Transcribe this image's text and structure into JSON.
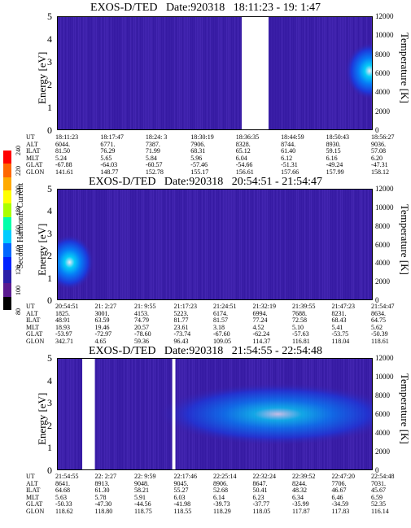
{
  "colorbar": {
    "label": "Second Harmonic Current",
    "ticks": [
      "80",
      "100",
      "120",
      "140",
      "160",
      "180",
      "200",
      "220",
      "240"
    ],
    "colors": [
      "#ff0000",
      "#ff6600",
      "#ffaa00",
      "#ffff00",
      "#aaff00",
      "#00ffaa",
      "#00ccff",
      "#0066ff",
      "#0022ff",
      "#2a1fa8",
      "#5a1a90",
      "#000000"
    ]
  },
  "chart_data": [
    {
      "type": "heatmap",
      "title": "EXOS-D/TED   Date:920318   18:11:23 - 19: 1:47",
      "ylabel": "Energy [eV]",
      "y2label": "Temperature [K]",
      "ylim": [
        0,
        5
      ],
      "y2lim": [
        0,
        12000
      ],
      "yticks": [
        "0",
        "1",
        "2",
        "3",
        "4",
        "5"
      ],
      "y2ticks": [
        "0",
        "2000",
        "4000",
        "6000",
        "8000",
        "10000",
        "12000"
      ],
      "gaps": [
        [
          0.585,
          0.67
        ]
      ],
      "hotspots": [
        {
          "cx": 0.99,
          "cy": 2.6,
          "level": 0.55
        }
      ],
      "rows": {
        "UT": [
          "18:11:23",
          "18:17:47",
          "18:24: 3",
          "18:30:19",
          "18:36:35",
          "18:44:59",
          "18:50:43",
          "18:56:27"
        ],
        "ALT": [
          "6044.",
          "6771.",
          "7387.",
          "7906.",
          "8328.",
          "8744.",
          "8930.",
          "9036."
        ],
        "ILAT": [
          "81.50",
          "76.29",
          "71.99",
          "68.31",
          "65.12",
          "61.40",
          "59.15",
          "57.08"
        ],
        "MLT": [
          "5.24",
          "5.65",
          "5.84",
          "5.96",
          "6.04",
          "6.12",
          "6.16",
          "6.20"
        ],
        "GLAT": [
          "-67.88",
          "-64.03",
          "-60.57",
          "-57.46",
          "-54.66",
          "-51.31",
          "-49.24",
          "-47.31"
        ],
        "GLON": [
          "141.61",
          "148.77",
          "152.78",
          "155.17",
          "156.61",
          "157.66",
          "157.99",
          "158.12"
        ]
      }
    },
    {
      "type": "heatmap",
      "title": "EXOS-D/TED   Date:920318   20:54:51 - 21:54:47",
      "ylabel": "Energy [eV]",
      "y2label": "Temperature [K]",
      "ylim": [
        0,
        5
      ],
      "y2lim": [
        0,
        12000
      ],
      "yticks": [
        "0",
        "1",
        "2",
        "3",
        "4",
        "5"
      ],
      "y2ticks": [
        "0",
        "2000",
        "4000",
        "6000",
        "8000",
        "10000",
        "12000"
      ],
      "gaps": [],
      "hotspots": [
        {
          "cx": 0.04,
          "cy": 1.7,
          "level": 0.6
        }
      ],
      "rows": {
        "UT": [
          "20:54:51",
          "21: 2:27",
          "21: 9:55",
          "21:17:23",
          "21:24:51",
          "21:32:19",
          "21:39:55",
          "21:47:23",
          "21:54:47"
        ],
        "ALT": [
          "1825.",
          "3001.",
          "4153.",
          "5223.",
          "6174.",
          "6994.",
          "7688.",
          "8231.",
          "8634."
        ],
        "ILAT": [
          "48.91",
          "63.59",
          "74.79",
          "81.77",
          "81.57",
          "77.24",
          "72.58",
          "68.43",
          "64.75"
        ],
        "MLT": [
          "18.93",
          "19.46",
          "20.57",
          "23.61",
          "3.18",
          "4.52",
          "5.10",
          "5.41",
          "5.62"
        ],
        "GLAT": [
          "-53.97",
          "-72.97",
          "-78.60",
          "-73.74",
          "-67.60",
          "-62.24",
          "-57.63",
          "-53.75",
          "-50.39"
        ],
        "GLON": [
          "342.71",
          "4.65",
          "59.36",
          "96.43",
          "109.05",
          "114.37",
          "116.81",
          "118.04",
          "118.61"
        ]
      }
    },
    {
      "type": "heatmap",
      "title": "EXOS-D/TED   Date:920318   21:54:55 - 22:54:48",
      "ylabel": "Energy [eV]",
      "y2label": "Temperature [K]",
      "ylim": [
        0,
        5
      ],
      "y2lim": [
        0,
        12000
      ],
      "yticks": [
        "0",
        "1",
        "2",
        "3",
        "4",
        "5"
      ],
      "y2ticks": [
        "0",
        "2000",
        "4000",
        "6000",
        "8000",
        "10000",
        "12000"
      ],
      "gaps": [
        [
          0.08,
          0.12
        ],
        [
          0.365,
          0.375
        ]
      ],
      "hotspots": [
        {
          "cx": 0.7,
          "cy": 2.5,
          "level": 0.4,
          "wide": true
        }
      ],
      "rows": {
        "UT": [
          "21:54:55",
          "22: 2:27",
          "22: 9:59",
          "22:17:46",
          "22:25:14",
          "22:32:24",
          "22:39:52",
          "22:47:20",
          "22:54:48"
        ],
        "ALT": [
          "8641.",
          "8913.",
          "9048.",
          "9045.",
          "8906.",
          "8647.",
          "8244.",
          "7706.",
          "7031."
        ],
        "ILAT": [
          "64.68",
          "61.30",
          "58.21",
          "55.27",
          "52.68",
          "50.41",
          "48.32",
          "46.67",
          "45.67"
        ],
        "MLT": [
          "5.63",
          "5.78",
          "5.91",
          "6.03",
          "6.14",
          "6.23",
          "6.34",
          "6.46",
          "6.59"
        ],
        "GLAT": [
          "-50.33",
          "-47.30",
          "-44.56",
          "-41.98",
          "-39.73",
          "-37.77",
          "-35.99",
          "-34.59",
          "52.35"
        ],
        "GLON": [
          "118.62",
          "118.80",
          "118.75",
          "118.55",
          "118.29",
          "118.05",
          "117.87",
          "117.83",
          "116.14"
        ]
      }
    }
  ]
}
